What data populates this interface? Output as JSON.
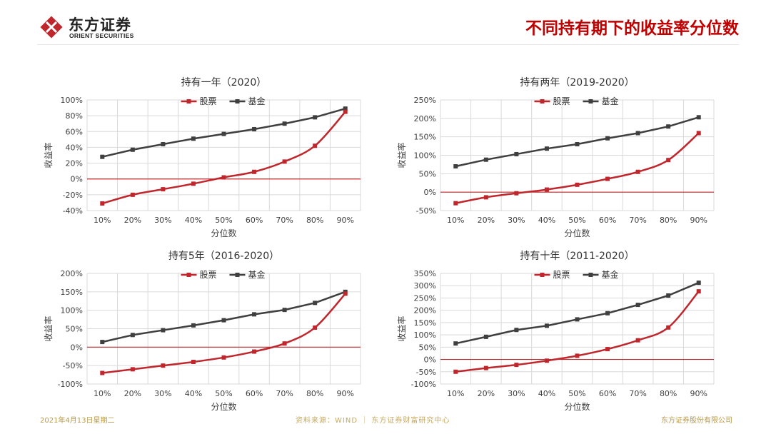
{
  "header": {
    "logo_cn": "东方证券",
    "logo_en": "ORIENT SECURITIES",
    "title": "不同持有期下的收益率分位数"
  },
  "footer": {
    "date": "2021年4月13日星期二",
    "source": "资料来源：WIND  ｜ 东方证券财富研究中心",
    "company": "东方证券股份有限公司"
  },
  "colors": {
    "stock": "#c0272d",
    "fund": "#3f3f3f",
    "zero_line": "#c0272d",
    "grid": "#d9d9d9",
    "title_red": "#c00000"
  },
  "chart_data": [
    {
      "type": "line",
      "title": "持有一年（2020）",
      "xlabel": "分位数",
      "ylabel": "收益率",
      "categories": [
        "10%",
        "20%",
        "30%",
        "40%",
        "50%",
        "60%",
        "70%",
        "80%",
        "90%"
      ],
      "ylim": [
        -40,
        100
      ],
      "yticks": [
        -40,
        -20,
        0,
        20,
        40,
        60,
        80,
        100
      ],
      "ytick_labels": [
        "-40%",
        "-20%",
        "0%",
        "20%",
        "40%",
        "60%",
        "80%",
        "100%"
      ],
      "grid": true,
      "legend": "top",
      "series": [
        {
          "name": "股票",
          "values": [
            -31,
            -20,
            -13,
            -6,
            2,
            9,
            22,
            42,
            85
          ],
          "smooth": true
        },
        {
          "name": "基金",
          "values": [
            28,
            37,
            44,
            51,
            57,
            63,
            70,
            78,
            89
          ],
          "smooth": false
        }
      ]
    },
    {
      "type": "line",
      "title": "持有两年（2019-2020）",
      "xlabel": "分位数",
      "ylabel": "收益率",
      "categories": [
        "10%",
        "20%",
        "30%",
        "40%",
        "50%",
        "60%",
        "70%",
        "80%",
        "90%"
      ],
      "ylim": [
        -50,
        250
      ],
      "yticks": [
        -50,
        0,
        50,
        100,
        150,
        200,
        250
      ],
      "ytick_labels": [
        "-50%",
        "0%",
        "50%",
        "100%",
        "150%",
        "200%",
        "250%"
      ],
      "grid": true,
      "legend": "top",
      "series": [
        {
          "name": "股票",
          "values": [
            -30,
            -14,
            -3,
            7,
            20,
            36,
            55,
            87,
            160
          ],
          "smooth": true
        },
        {
          "name": "基金",
          "values": [
            70,
            88,
            103,
            118,
            130,
            146,
            160,
            178,
            203
          ],
          "smooth": false
        }
      ]
    },
    {
      "type": "line",
      "title": "持有5年（2016-2020）",
      "xlabel": "分位数",
      "ylabel": "收益率",
      "categories": [
        "10%",
        "20%",
        "30%",
        "40%",
        "50%",
        "60%",
        "70%",
        "80%",
        "90%"
      ],
      "ylim": [
        -100,
        200
      ],
      "yticks": [
        -100,
        -50,
        0,
        50,
        100,
        150,
        200
      ],
      "ytick_labels": [
        "-100%",
        "-50%",
        "0%",
        "50%",
        "100%",
        "150%",
        "200%"
      ],
      "grid": true,
      "legend": "top",
      "series": [
        {
          "name": "股票",
          "values": [
            -70,
            -60,
            -50,
            -40,
            -28,
            -12,
            10,
            53,
            145
          ],
          "smooth": true
        },
        {
          "name": "基金",
          "values": [
            14,
            33,
            46,
            59,
            73,
            89,
            101,
            120,
            150
          ],
          "smooth": false
        }
      ]
    },
    {
      "type": "line",
      "title": "持有十年（2011-2020）",
      "xlabel": "分位数",
      "ylabel": "收益率",
      "categories": [
        "10%",
        "20%",
        "30%",
        "40%",
        "50%",
        "60%",
        "70%",
        "80%",
        "90%"
      ],
      "ylim": [
        -100,
        350
      ],
      "yticks": [
        -100,
        -50,
        0,
        50,
        100,
        150,
        200,
        250,
        300,
        350
      ],
      "ytick_labels": [
        "-100%",
        "-50%",
        "0%",
        "50%",
        "100%",
        "150%",
        "200%",
        "250%",
        "300%",
        "350%"
      ],
      "grid": true,
      "legend": "top",
      "series": [
        {
          "name": "股票",
          "values": [
            -50,
            -35,
            -22,
            -5,
            15,
            42,
            78,
            130,
            277
          ],
          "smooth": true
        },
        {
          "name": "基金",
          "values": [
            65,
            92,
            120,
            137,
            163,
            188,
            222,
            260,
            312
          ],
          "smooth": false
        }
      ]
    }
  ]
}
